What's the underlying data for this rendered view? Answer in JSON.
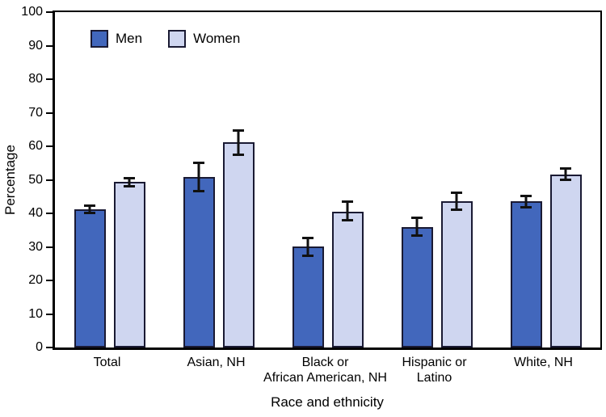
{
  "chart_data": {
    "type": "bar",
    "title": "",
    "xlabel": "Race and ethnicity",
    "ylabel": "Percentage",
    "ylim": [
      0,
      100
    ],
    "ytick_step": 10,
    "grid": false,
    "legend_position": "top-left-inside",
    "categories": [
      "Total",
      "Asian, NH",
      "Black or\nAfrican American, NH",
      "Hispanic or\nLatino",
      "White, NH"
    ],
    "series": [
      {
        "name": "Men",
        "color": "#4267BC",
        "values": [
          41.1,
          50.8,
          30.1,
          35.9,
          43.5
        ],
        "ci": [
          [
            40.1,
            42.4
          ],
          [
            46.6,
            55.0
          ],
          [
            27.3,
            32.7
          ],
          [
            33.3,
            38.7
          ],
          [
            41.9,
            45.2
          ]
        ]
      },
      {
        "name": "Women",
        "color": "#CFD6F0",
        "values": [
          49.3,
          61.1,
          40.5,
          43.6,
          51.6
        ],
        "ci": [
          [
            48.0,
            50.6
          ],
          [
            57.4,
            64.8
          ],
          [
            37.9,
            43.6
          ],
          [
            41.1,
            46.1
          ],
          [
            49.9,
            53.4
          ]
        ]
      }
    ],
    "colors": {
      "bar_outline": "#1a1a33",
      "error_bar": "#111111",
      "frame": "#000000",
      "text": "#000000"
    }
  }
}
